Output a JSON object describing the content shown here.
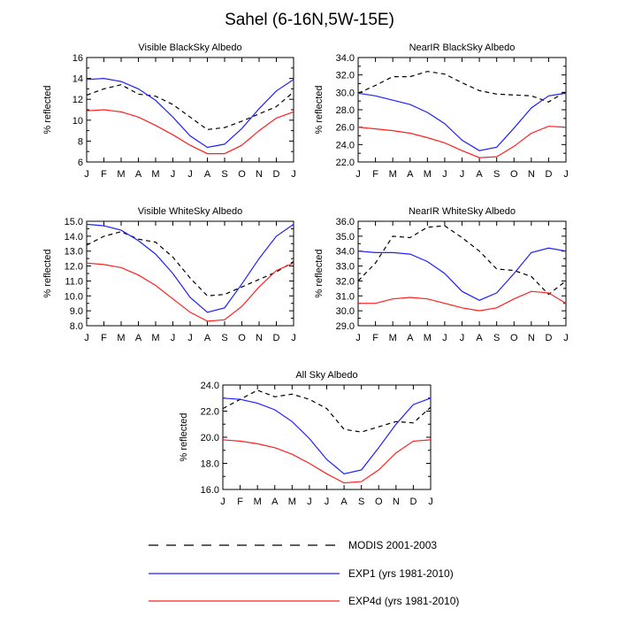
{
  "figure": {
    "title": "Sahel (6-16N,5W-15E)"
  },
  "legend": {
    "placement": "bottom-center",
    "entries": [
      {
        "label": "MODIS 2001-2003",
        "color": "#000000",
        "dash": "dashed"
      },
      {
        "label": "EXP1 (yrs 1981-2010)",
        "color": "#1f1fff",
        "dash": "solid"
      },
      {
        "label": "EXP4d (yrs 1981-2010)",
        "color": "#ff1f1f",
        "dash": "solid"
      }
    ]
  },
  "chart_data": [
    {
      "type": "line",
      "title": "Visible BlackSky Albedo",
      "ylabel": "% reflected",
      "categories": [
        "J",
        "F",
        "M",
        "A",
        "M",
        "J",
        "J",
        "A",
        "S",
        "O",
        "N",
        "D",
        "J"
      ],
      "ylim": [
        6,
        16
      ],
      "yticks": [
        "6",
        "8",
        "10",
        "12",
        "14",
        "16"
      ],
      "grid": false,
      "series": [
        {
          "name": "MODIS 2001-2003",
          "values": [
            12.4,
            13.0,
            13.4,
            12.5,
            12.3,
            11.5,
            10.3,
            9.1,
            9.3,
            9.9,
            10.6,
            11.3,
            12.7
          ]
        },
        {
          "name": "EXP1 (yrs 1981-2010)",
          "values": [
            13.9,
            14.0,
            13.7,
            13.0,
            11.9,
            10.3,
            8.5,
            7.4,
            7.7,
            9.2,
            11.1,
            12.8,
            13.9
          ]
        },
        {
          "name": "EXP4d (yrs 1981-2010)",
          "values": [
            10.9,
            11.0,
            10.8,
            10.3,
            9.5,
            8.6,
            7.6,
            6.8,
            6.8,
            7.6,
            9.0,
            10.2,
            10.8
          ]
        }
      ]
    },
    {
      "type": "line",
      "title": "NearIR BlackSky Albedo",
      "ylabel": "% reflected",
      "categories": [
        "J",
        "F",
        "M",
        "A",
        "M",
        "J",
        "J",
        "A",
        "S",
        "O",
        "N",
        "D",
        "J"
      ],
      "ylim": [
        22,
        34
      ],
      "yticks": [
        "22.0",
        "24.0",
        "26.0",
        "28.0",
        "30.0",
        "32.0",
        "34.0"
      ],
      "grid": false,
      "series": [
        {
          "name": "MODIS 2001-2003",
          "values": [
            29.9,
            30.8,
            31.8,
            31.8,
            32.4,
            32.1,
            31.1,
            30.2,
            29.8,
            29.7,
            29.6,
            28.9,
            30.1
          ]
        },
        {
          "name": "EXP1 (yrs 1981-2010)",
          "values": [
            29.9,
            29.6,
            29.1,
            28.6,
            27.7,
            26.4,
            24.5,
            23.3,
            23.7,
            25.9,
            28.2,
            29.6,
            29.9
          ]
        },
        {
          "name": "EXP4d (yrs 1981-2010)",
          "values": [
            26.0,
            25.8,
            25.6,
            25.3,
            24.8,
            24.2,
            23.3,
            22.5,
            22.6,
            23.8,
            25.3,
            26.1,
            26.0
          ]
        }
      ]
    },
    {
      "type": "line",
      "title": "Visible WhiteSky Albedo",
      "ylabel": "% reflected",
      "categories": [
        "J",
        "F",
        "M",
        "A",
        "M",
        "J",
        "J",
        "A",
        "S",
        "O",
        "N",
        "D",
        "J"
      ],
      "ylim": [
        8,
        15
      ],
      "yticks": [
        "8.0",
        "9.0",
        "10.0",
        "11.0",
        "12.0",
        "13.0",
        "14.0",
        "15.0"
      ],
      "grid": false,
      "series": [
        {
          "name": "MODIS 2001-2003",
          "values": [
            13.4,
            14.0,
            14.3,
            13.8,
            13.6,
            12.6,
            11.2,
            10.0,
            10.1,
            10.6,
            11.1,
            11.6,
            12.3
          ]
        },
        {
          "name": "EXP1 (yrs 1981-2010)",
          "values": [
            14.8,
            14.7,
            14.4,
            13.7,
            12.8,
            11.5,
            9.9,
            8.9,
            9.2,
            10.8,
            12.5,
            14.0,
            14.8
          ]
        },
        {
          "name": "EXP4d (yrs 1981-2010)",
          "values": [
            12.2,
            12.1,
            11.9,
            11.4,
            10.7,
            9.8,
            8.9,
            8.3,
            8.4,
            9.3,
            10.6,
            11.7,
            12.2
          ]
        }
      ]
    },
    {
      "type": "line",
      "title": "NearIR WhiteSky Albedo",
      "ylabel": "% reflected",
      "categories": [
        "J",
        "F",
        "M",
        "A",
        "M",
        "J",
        "J",
        "A",
        "S",
        "O",
        "N",
        "D",
        "J"
      ],
      "ylim": [
        29,
        36
      ],
      "yticks": [
        "29.0",
        "30.0",
        "31.0",
        "32.0",
        "33.0",
        "34.0",
        "35.0",
        "36.0"
      ],
      "grid": false,
      "series": [
        {
          "name": "MODIS 2001-2003",
          "values": [
            32.0,
            33.2,
            35.0,
            34.9,
            35.6,
            35.7,
            34.9,
            34.0,
            32.8,
            32.7,
            32.3,
            31.1,
            32.0
          ]
        },
        {
          "name": "EXP1 (yrs 1981-2010)",
          "values": [
            34.0,
            33.9,
            33.9,
            33.8,
            33.3,
            32.5,
            31.3,
            30.7,
            31.2,
            32.5,
            33.9,
            34.2,
            34.0
          ]
        },
        {
          "name": "EXP4d (yrs 1981-2010)",
          "values": [
            30.5,
            30.5,
            30.8,
            30.9,
            30.8,
            30.5,
            30.2,
            30.0,
            30.2,
            30.8,
            31.3,
            31.2,
            30.5
          ]
        }
      ]
    },
    {
      "type": "line",
      "title": "All Sky Albedo",
      "ylabel": "% reflected",
      "categories": [
        "J",
        "F",
        "M",
        "A",
        "M",
        "J",
        "J",
        "A",
        "S",
        "O",
        "N",
        "D",
        "J"
      ],
      "ylim": [
        16,
        24
      ],
      "yticks": [
        "16.0",
        "18.0",
        "20.0",
        "22.0",
        "24.0"
      ],
      "grid": false,
      "series": [
        {
          "name": "MODIS 2001-2003",
          "values": [
            22.2,
            22.9,
            23.6,
            23.1,
            23.3,
            22.9,
            22.2,
            20.6,
            20.4,
            20.8,
            21.2,
            21.1,
            22.3
          ]
        },
        {
          "name": "EXP1 (yrs 1981-2010)",
          "values": [
            23.0,
            22.9,
            22.6,
            22.1,
            21.2,
            19.9,
            18.3,
            17.2,
            17.5,
            19.2,
            21.0,
            22.5,
            23.0
          ]
        },
        {
          "name": "EXP4d (yrs 1981-2010)",
          "values": [
            19.8,
            19.7,
            19.5,
            19.2,
            18.7,
            18.0,
            17.2,
            16.5,
            16.6,
            17.5,
            18.8,
            19.7,
            19.8
          ]
        }
      ]
    }
  ]
}
